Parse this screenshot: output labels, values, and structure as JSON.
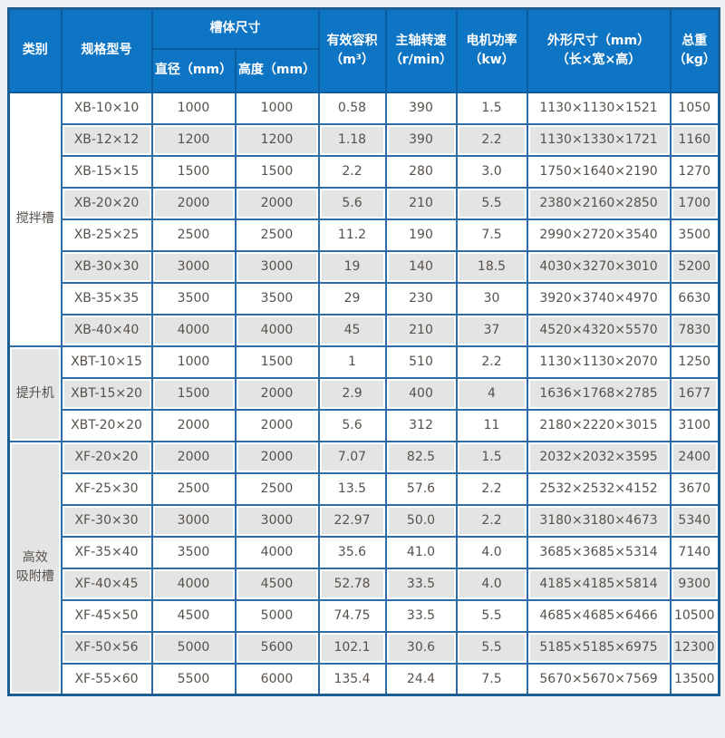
{
  "colors": {
    "header_bg": "#0e74c4",
    "header_text": "#ffffff",
    "header_border": "#0b5c9e",
    "grid_border": "#2e6da4",
    "outer_border": "#1b5e93",
    "alt_row_bg": "#e4e4e4",
    "body_text": "#57514b",
    "page_bg": "#eef1f4"
  },
  "chart_data": {
    "type": "table",
    "header": {
      "category": "类别",
      "model": "规格型号",
      "tank_size": "槽体尺寸",
      "diameter": "直径（mm）",
      "height": "高度（mm）",
      "volume": "有效容积\n（m³）",
      "speed": "主轴转速\n（r/min）",
      "power": "电机功率\n（kw）",
      "dimensions": "外形尺寸（mm）\n（长×宽×高）",
      "weight": "总重\n（kg）"
    },
    "columns": [
      "类别",
      "规格型号",
      "直径（mm）",
      "高度（mm）",
      "有效容积（m³）",
      "主轴转速（r/min）",
      "电机功率（kw）",
      "外形尺寸（mm）（长×宽×高）",
      "总重（kg）"
    ],
    "groups": [
      {
        "category": "搅拌槽",
        "shaded": false,
        "rows": [
          [
            "XB-10×10",
            "1000",
            "1000",
            "0.58",
            "390",
            "1.5",
            "1130×1130×1521",
            "1050"
          ],
          [
            "XB-12×12",
            "1200",
            "1200",
            "1.18",
            "390",
            "2.2",
            "1130×1330×1721",
            "1160"
          ],
          [
            "XB-15×15",
            "1500",
            "1500",
            "2.2",
            "280",
            "3.0",
            "1750×1640×2190",
            "1270"
          ],
          [
            "XB-20×20",
            "2000",
            "2000",
            "5.6",
            "210",
            "5.5",
            "2380×2160×2850",
            "1700"
          ],
          [
            "XB-25×25",
            "2500",
            "2500",
            "11.2",
            "190",
            "7.5",
            "2990×2720×3540",
            "3500"
          ],
          [
            "XB-30×30",
            "3000",
            "3000",
            "19",
            "140",
            "18.5",
            "4030×3270×3010",
            "5200"
          ],
          [
            "XB-35×35",
            "3500",
            "3500",
            "29",
            "230",
            "30",
            "3920×3740×4970",
            "6630"
          ],
          [
            "XB-40×40",
            "4000",
            "4000",
            "45",
            "210",
            "37",
            "4520×4320×5570",
            "7830"
          ]
        ]
      },
      {
        "category": "提升机",
        "shaded": true,
        "rows": [
          [
            "XBT-10×15",
            "1000",
            "1500",
            "1",
            "510",
            "2.2",
            "1130×1130×2070",
            "1250"
          ],
          [
            "XBT-15×20",
            "1500",
            "2000",
            "2.9",
            "400",
            "4",
            "1636×1768×2785",
            "1677"
          ],
          [
            "XBT-20×20",
            "2000",
            "2000",
            "5.6",
            "312",
            "11",
            "2180×2220×3015",
            "3100"
          ]
        ]
      },
      {
        "category": "高效\n吸附槽",
        "shaded": false,
        "rows": [
          [
            "XF-20×20",
            "2000",
            "2000",
            "7.07",
            "82.5",
            "1.5",
            "2032×2032×3595",
            "2400"
          ],
          [
            "XF-25×30",
            "2500",
            "2500",
            "13.5",
            "57.6",
            "2.2",
            "2532×2532×4152",
            "3670"
          ],
          [
            "XF-30×30",
            "3000",
            "3000",
            "22.97",
            "50.0",
            "2.2",
            "3180×3180×4673",
            "5340"
          ],
          [
            "XF-35×40",
            "3500",
            "4000",
            "35.6",
            "41.0",
            "4.0",
            "3685×3685×5314",
            "7140"
          ],
          [
            "XF-40×45",
            "4000",
            "4500",
            "52.78",
            "33.5",
            "4.0",
            "4185×4185×5814",
            "9300"
          ],
          [
            "XF-45×50",
            "4500",
            "5000",
            "74.75",
            "33.5",
            "5.5",
            "4685×4685×6466",
            "10500"
          ],
          [
            "XF-50×56",
            "5000",
            "5600",
            "102.1",
            "30.6",
            "5.5",
            "5185×5185×6975",
            "12300"
          ],
          [
            "XF-55×60",
            "5500",
            "6000",
            "135.4",
            "24.4",
            "7.5",
            "5670×5670×7569",
            "13500"
          ]
        ]
      }
    ]
  }
}
